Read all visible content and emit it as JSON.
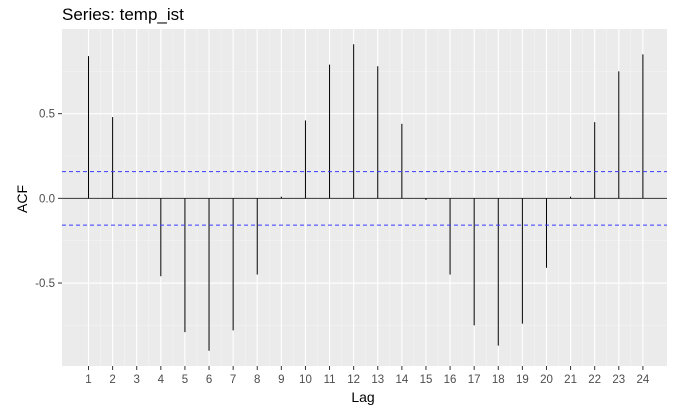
{
  "chart_data": {
    "type": "bar",
    "title": "Series: temp_ist",
    "xlabel": "Lag",
    "ylabel": "ACF",
    "x": [
      1,
      2,
      3,
      4,
      5,
      6,
      7,
      8,
      9,
      10,
      11,
      12,
      13,
      14,
      15,
      16,
      17,
      18,
      19,
      20,
      21,
      22,
      23,
      24
    ],
    "values": [
      0.84,
      0.48,
      0.0,
      -0.46,
      -0.79,
      -0.9,
      -0.78,
      -0.45,
      0.01,
      0.46,
      0.79,
      0.91,
      0.78,
      0.44,
      -0.01,
      -0.45,
      -0.75,
      -0.87,
      -0.74,
      -0.41,
      0.01,
      0.45,
      0.75,
      0.85
    ],
    "xlim": [
      -0.1,
      25.0
    ],
    "ylim": [
      -0.99,
      1.0
    ],
    "yticks": [
      -0.5,
      0.0,
      0.5
    ],
    "ytick_labels": [
      "-0.5",
      "0.0",
      "0.5"
    ],
    "confidence_bound": 0.158,
    "grid": true,
    "colors": {
      "panel": "#ebebeb",
      "grid_major": "#ffffff",
      "grid_minor": "#f4f4f4",
      "bar": "#000000",
      "zero_line": "#333333",
      "confidence": "#3a3aff"
    }
  }
}
